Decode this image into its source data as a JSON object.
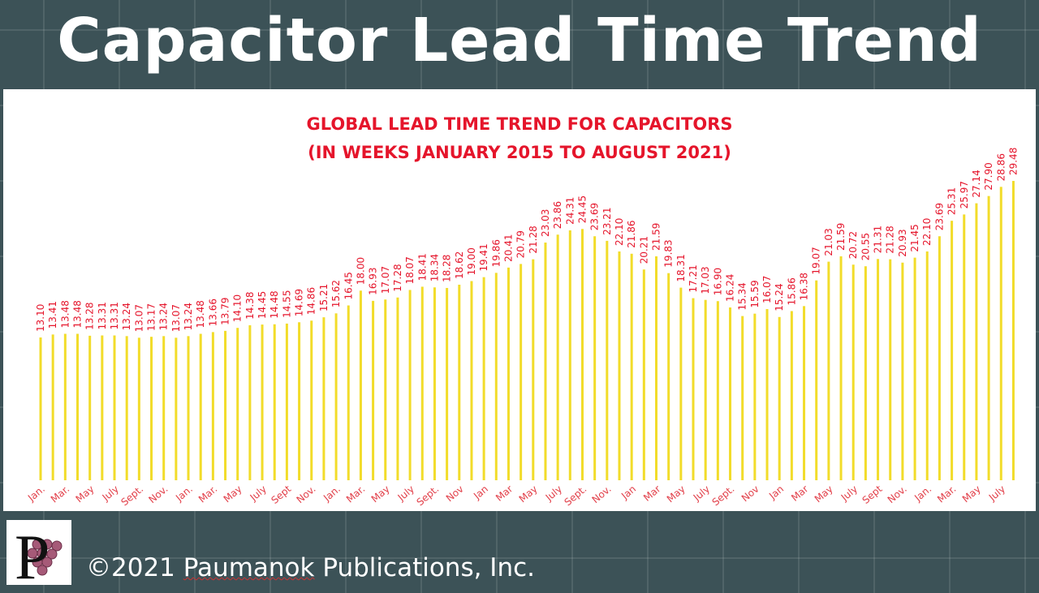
{
  "slide_title": "Capacitor Lead Time Trend",
  "footer": {
    "copyright_prefix": "©2021 ",
    "brand": "Paumanok",
    "copyright_suffix": " Publications, Inc.",
    "logo_letter": "P"
  },
  "colors": {
    "bar": "#f2dc2a",
    "label": "#e5152b",
    "background": "#3c5257"
  },
  "chart_data": {
    "type": "bar",
    "title": "GLOBAL LEAD TIME TREND FOR CAPACITORS",
    "subtitle": "(IN WEEKS JANUARY 2015 TO AUGUST 2021)",
    "grid": false,
    "data_labels": true,
    "tick_labels": [
      "Jan.",
      "Mar.",
      "May",
      "July",
      "Sept.",
      "Nov.",
      "Jan.",
      "Mar.",
      "May",
      "July",
      "Sept",
      "Nov.",
      "Jan.",
      "Mar.",
      "May",
      "July",
      "Sept.",
      "Nov",
      "Jan",
      "Mar",
      "May",
      "July",
      "Sept.",
      "Nov.",
      "Jan",
      "Mar",
      "May",
      "July",
      "Sept.",
      "Nov",
      "Jan",
      "Mar",
      "May",
      "July",
      "Sept",
      "Nov.",
      "Jan.",
      "Mar.",
      "May",
      "July"
    ],
    "values": [
      13.1,
      13.41,
      13.48,
      13.48,
      13.28,
      13.31,
      13.31,
      13.24,
      13.07,
      13.17,
      13.24,
      13.07,
      13.24,
      13.48,
      13.66,
      13.79,
      14.1,
      14.38,
      14.45,
      14.48,
      14.55,
      14.69,
      14.86,
      15.21,
      15.62,
      16.45,
      18.0,
      16.93,
      17.07,
      17.28,
      18.07,
      18.41,
      18.34,
      18.28,
      18.62,
      19.0,
      19.41,
      19.86,
      20.41,
      20.79,
      21.28,
      23.03,
      23.86,
      24.31,
      24.45,
      23.69,
      23.21,
      22.1,
      21.86,
      20.21,
      21.59,
      19.83,
      18.31,
      17.21,
      17.03,
      16.9,
      16.24,
      15.34,
      15.59,
      16.07,
      15.24,
      15.86,
      16.38,
      19.07,
      21.03,
      21.59,
      20.72,
      20.55,
      21.31,
      21.28,
      20.93,
      21.45,
      22.1,
      23.69,
      25.31,
      25.97,
      27.14,
      27.9,
      28.86,
      29.48
    ],
    "value_labels": [
      "13.10",
      "13.41",
      "13.48",
      "13.48",
      "13.28",
      "13.31",
      "13.31",
      "13.24",
      "13.07",
      "13.17",
      "13.24",
      "13.07",
      "13.24",
      "13.48",
      "13.66",
      "13.79",
      "14.10",
      "14.38",
      "14.45",
      "14.48",
      "14.55",
      "14.69",
      "14.86",
      "15.21",
      "15.62",
      "16.45",
      "18.00",
      "16.93",
      "17.07",
      "17.28",
      "18.07",
      "18.41",
      "18.34",
      "18.28",
      "18.62",
      "19.00",
      "19.41",
      "19.86",
      "20.41",
      "20.79",
      "21.28",
      "23.03",
      "23.86",
      "24.31",
      "24.45",
      "23.69",
      "23.21",
      "22.10",
      "21.86",
      "20.21",
      "21.59",
      "19.83",
      "18.31",
      "17.21",
      "17.03",
      "16.90",
      "16.24",
      "15.34",
      "15.59",
      "16.07",
      "15.24",
      "15.86",
      "16.38",
      "19.07",
      "21.03",
      "21.59",
      "20.72",
      "20.55",
      "21.31",
      "21.28",
      "20.93",
      "21.45",
      "22.10",
      "23.69",
      "25.31",
      "25.97",
      "27.14",
      "27.90",
      "28.86",
      "29.48"
    ]
  }
}
